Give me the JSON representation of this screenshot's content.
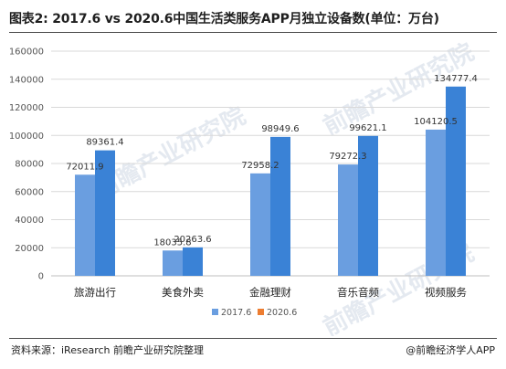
{
  "title": "图表2: 2017.6 vs 2020.6中国生活类服务APP月独立设备数(单位：万台)",
  "source": "资料来源：iResearch 前瞻产业研究院整理",
  "credit": "@前瞻经济学人APP",
  "colors": {
    "series_2017": "#6a9ee0",
    "series_2020": "#3a82d6",
    "legend_2020_swatch": "#ed7d31",
    "gridline": "#d9d9d9",
    "axis": "#bfbfbf"
  },
  "chart_data": {
    "type": "bar",
    "title": "图表2: 2017.6 vs 2020.6中国生活类服务APP月独立设备数(单位：万台)",
    "xlabel": "",
    "ylabel": "",
    "categories": [
      "旅游出行",
      "美食外卖",
      "金融理财",
      "音乐音频",
      "视频服务"
    ],
    "series": [
      {
        "name": "2017.6",
        "values": [
          72011.9,
          18035.8,
          72958.2,
          79272.3,
          104120.5
        ]
      },
      {
        "name": "2020.6",
        "values": [
          89361.4,
          20263.6,
          98949.6,
          99621.1,
          134777.4
        ]
      }
    ],
    "data_labels": [
      [
        "72011.9",
        "18035.8",
        "72958.2",
        "79272.3",
        "104120.5"
      ],
      [
        "89361.4",
        "20263.6",
        "98949.6",
        "99621.1",
        "134777.4"
      ]
    ],
    "ylim": [
      0,
      160000
    ],
    "yticks": [
      0,
      20000,
      40000,
      60000,
      80000,
      100000,
      120000,
      140000,
      160000
    ],
    "ytick_labels": [
      "0",
      "20000",
      "40000",
      "60000",
      "80000",
      "100000",
      "120000",
      "140000",
      "160000"
    ],
    "grid": true,
    "legend": "bottom"
  }
}
